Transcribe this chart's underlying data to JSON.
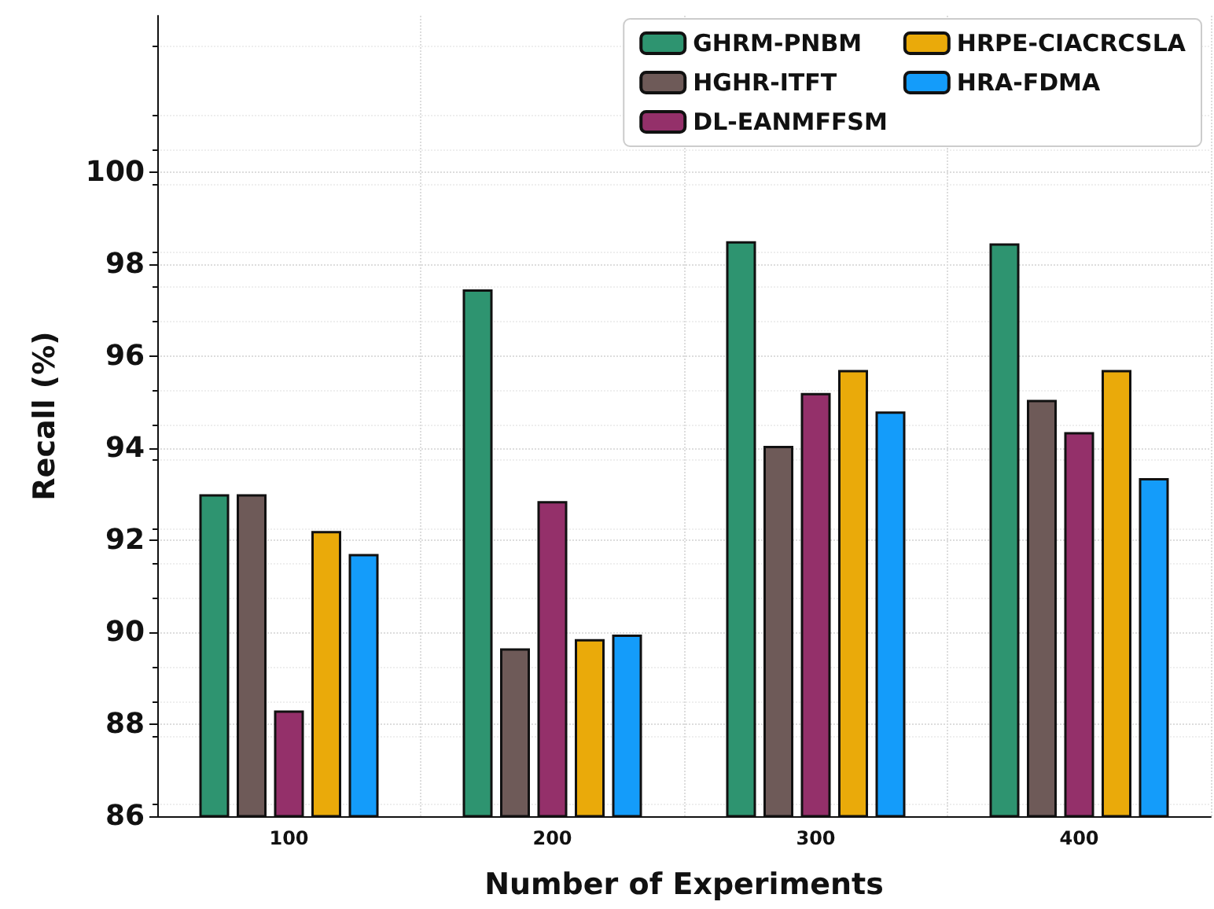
{
  "chart_data": {
    "type": "bar",
    "xlabel": "Number of Experiments",
    "ylabel": "Recall (%)",
    "categories": [
      "100",
      "200",
      "300",
      "400"
    ],
    "series": [
      {
        "name": "GHRM-PNBM",
        "color": "#2e9470",
        "values": [
          93,
          97.45,
          98.5,
          98.45
        ]
      },
      {
        "name": "HGHR-ITFT",
        "color": "#6e5a58",
        "values": [
          93,
          89.65,
          94.05,
          95.05
        ]
      },
      {
        "name": "DL-EANMFFSM",
        "color": "#94306a",
        "values": [
          88.3,
          92.85,
          95.2,
          94.35
        ]
      },
      {
        "name": "HRPE-CIACRCSLA",
        "color": "#eaaa0a",
        "values": [
          92.2,
          89.85,
          95.7,
          95.7
        ]
      },
      {
        "name": "HRA-FDMA",
        "color": "#149cfa",
        "values": [
          91.7,
          89.95,
          94.8,
          93.35
        ]
      }
    ],
    "ylim": [
      86,
      103.4
    ],
    "yticks": [
      86,
      88,
      90,
      92,
      94,
      96,
      98,
      100
    ],
    "grid": true,
    "legend": "top right"
  }
}
